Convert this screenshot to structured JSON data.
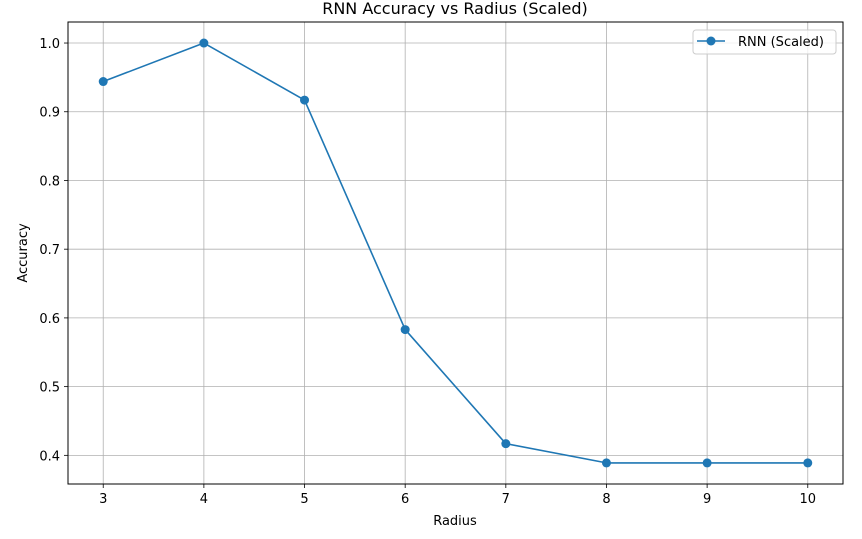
{
  "chart_data": {
    "type": "line",
    "title": "RNN Accuracy vs Radius (Scaled)",
    "xlabel": "Radius",
    "ylabel": "Accuracy",
    "xlim": [
      2.65,
      10.35
    ],
    "ylim": [
      0.3583,
      1.0306
    ],
    "x_ticks": [
      3,
      4,
      5,
      6,
      7,
      8,
      9,
      10
    ],
    "y_ticks": [
      0.4,
      0.5,
      0.6,
      0.7,
      0.8,
      0.9,
      1.0
    ],
    "x_tick_labels": [
      "3",
      "4",
      "5",
      "6",
      "7",
      "8",
      "9",
      "10"
    ],
    "y_tick_labels": [
      "0.4",
      "0.5",
      "0.6",
      "0.7",
      "0.8",
      "0.9",
      "1.0"
    ],
    "grid": true,
    "legend_position": "top-right",
    "series": [
      {
        "name": "RNN (Scaled)",
        "color": "#1f77b4",
        "marker": "circle",
        "x": [
          3,
          4,
          5,
          6,
          7,
          8,
          9,
          10
        ],
        "y": [
          0.944,
          1.0,
          0.917,
          0.583,
          0.417,
          0.389,
          0.389,
          0.389
        ]
      }
    ]
  }
}
